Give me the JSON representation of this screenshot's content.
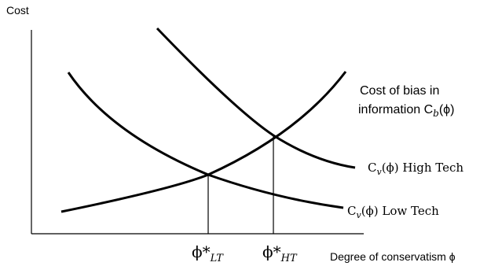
{
  "chart_data": {
    "type": "line",
    "ylabel": "Cost",
    "xlabel": "Degree of conservatism ϕ",
    "series": [
      {
        "name": "Cost of bias in information C_b(ϕ)",
        "label_line1": "Cost of bias in",
        "label_line2_prefix": "information C",
        "label_sub": "b",
        "label_suffix": "(ϕ)"
      },
      {
        "name": "C_v(ϕ) High Tech",
        "label_prefix": "C",
        "label_sub": "v",
        "label_suffix": "(ϕ) High Tech"
      },
      {
        "name": "C_v(ϕ) Low Tech",
        "label_prefix": "C",
        "label_sub": "v",
        "label_suffix": "(ϕ) Low Tech"
      }
    ],
    "x_ticks": [
      {
        "main": "ϕ*",
        "sub": "LT"
      },
      {
        "main": "ϕ*",
        "sub": "HT"
      }
    ]
  }
}
